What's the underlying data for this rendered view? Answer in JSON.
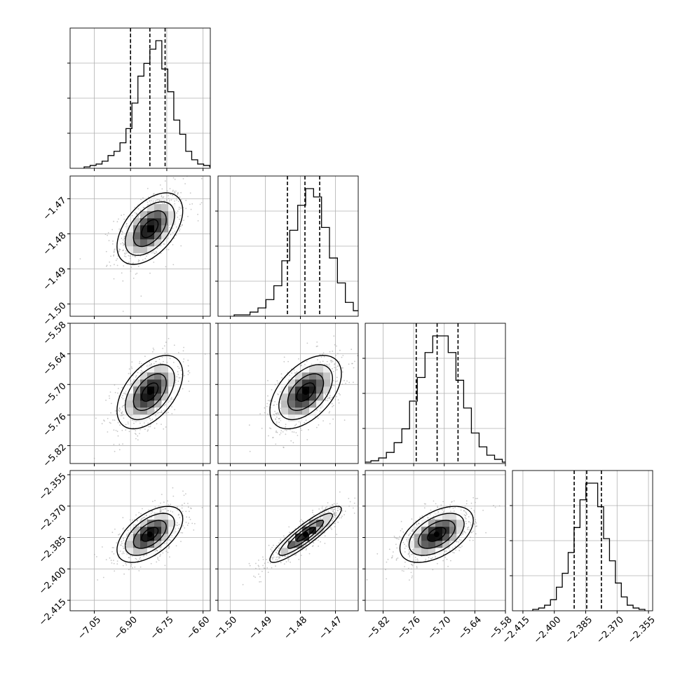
{
  "chart_data": {
    "type": "corner",
    "parameters": 4,
    "axis_ranges": [
      [
        -7.15,
        -6.57
      ],
      [
        -1.5035,
        -1.4635
      ],
      [
        -5.855,
        -5.58
      ],
      [
        -2.42,
        -2.353
      ]
    ],
    "ticks": [
      [
        "−7.05",
        "−6.90",
        "−6.75",
        "−6.60"
      ],
      [
        "−1.50",
        "−1.49",
        "−1.48",
        "−1.47"
      ],
      [
        "−5.82",
        "−5.76",
        "−5.70",
        "−5.64",
        "−5.58"
      ],
      [
        "−2.415",
        "−2.400",
        "−2.385",
        "−2.370",
        "−2.355"
      ]
    ],
    "tick_values": [
      [
        -7.05,
        -6.9,
        -6.75,
        -6.6
      ],
      [
        -1.5,
        -1.49,
        -1.48,
        -1.47
      ],
      [
        -5.82,
        -5.76,
        -5.7,
        -5.64,
        -5.58
      ],
      [
        -2.415,
        -2.4,
        -2.385,
        -2.37,
        -2.355
      ]
    ],
    "means": [
      -6.82,
      -1.4785,
      -5.715,
      -2.3835
    ],
    "sigmas": [
      0.068,
      0.0051,
      0.036,
      0.0067
    ],
    "quantiles": [
      [
        -6.9,
        -6.82,
        -6.757
      ],
      [
        -1.4837,
        -1.4787,
        -1.4745
      ],
      [
        -5.755,
        -5.714,
        -5.673
      ],
      [
        -2.3905,
        -2.3845,
        -2.3775
      ]
    ],
    "correlations": [
      [
        0,
        1,
        0.5
      ],
      [
        0,
        2,
        0.5
      ],
      [
        1,
        2,
        0.5
      ],
      [
        0,
        3,
        0.55
      ],
      [
        1,
        3,
        0.9
      ],
      [
        2,
        3,
        0.5
      ]
    ],
    "histograms": [
      [
        1,
        2,
        3,
        5,
        9,
        12,
        18,
        28,
        46,
        65,
        74,
        84,
        90,
        70,
        54,
        34,
        24,
        12,
        6,
        3,
        2,
        1
      ],
      [
        1,
        1,
        3,
        6,
        12,
        22,
        40,
        62,
        80,
        92,
        86,
        64,
        42,
        24,
        10,
        4,
        2,
        1
      ],
      [
        1,
        2,
        4,
        8,
        15,
        25,
        45,
        62,
        80,
        92,
        92,
        80,
        60,
        40,
        22,
        12,
        6,
        3,
        1
      ],
      [
        1,
        2,
        4,
        8,
        17,
        27,
        42,
        60,
        80,
        92,
        92,
        75,
        52,
        36,
        20,
        10,
        4,
        2,
        1
      ]
    ],
    "contour_levels_sigma": [
      0.5,
      1.0,
      1.5,
      2.0
    ],
    "grid": true,
    "quantile_lines": "dashed",
    "colors": {
      "line": "#000000",
      "grid": "#b0b0b0",
      "scatter": "#9a9a9a"
    }
  }
}
